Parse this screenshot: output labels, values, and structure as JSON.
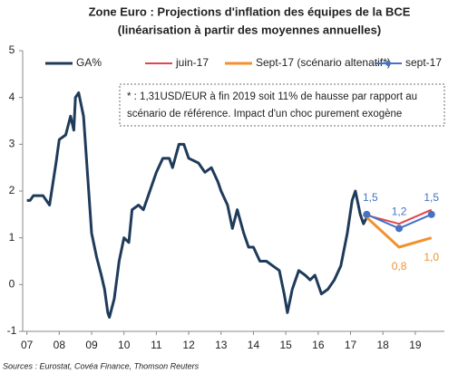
{
  "chart_data": {
    "type": "line",
    "title": "Zone Euro : Projections d'inflation des équipes de la BCE",
    "subtitle": "(linéarisation à partir des moyennes annuelles)",
    "annotation": [
      "* : 1,31USD/EUR à fin 2019 soit  11% de hausse par rapport au",
      "scénario de référence. Impact d'un choc purement exogène"
    ],
    "source": "Sources : Eurostat, Covéa Finance, Thomson Reuters",
    "xlim": [
      2006.87,
      2019.9
    ],
    "xticks": [
      {
        "value": 2007,
        "label": "07"
      },
      {
        "value": 2008,
        "label": "08"
      },
      {
        "value": 2009,
        "label": "09"
      },
      {
        "value": 2010,
        "label": "10"
      },
      {
        "value": 2011,
        "label": "11"
      },
      {
        "value": 2012,
        "label": "12"
      },
      {
        "value": 2013,
        "label": "13"
      },
      {
        "value": 2014,
        "label": "14"
      },
      {
        "value": 2015,
        "label": "15"
      },
      {
        "value": 2016,
        "label": "16"
      },
      {
        "value": 2017,
        "label": "17"
      },
      {
        "value": 2018,
        "label": "18"
      },
      {
        "value": 2019,
        "label": "19"
      }
    ],
    "ylim": [
      -1,
      5
    ],
    "yticks": [
      -1,
      0,
      1,
      2,
      3,
      4,
      5
    ],
    "grid": false,
    "legend": "top",
    "series": [
      {
        "name": "GA%",
        "color": "#1f3b5a",
        "width": 3,
        "x": [
          2007.0,
          2007.1,
          2007.2,
          2007.5,
          2007.7,
          2007.9,
          2008.0,
          2008.2,
          2008.35,
          2008.45,
          2008.5,
          2008.6,
          2008.75,
          2008.9,
          2009.0,
          2009.15,
          2009.3,
          2009.4,
          2009.5,
          2009.55,
          2009.7,
          2009.85,
          2010.0,
          2010.15,
          2010.25,
          2010.45,
          2010.6,
          2010.75,
          2010.9,
          2011.0,
          2011.2,
          2011.4,
          2011.5,
          2011.7,
          2011.85,
          2012.0,
          2012.3,
          2012.5,
          2012.7,
          2012.9,
          2013.0,
          2013.2,
          2013.35,
          2013.5,
          2013.7,
          2013.85,
          2014.0,
          2014.2,
          2014.4,
          2014.6,
          2014.8,
          2014.95,
          2015.05,
          2015.2,
          2015.4,
          2015.6,
          2015.75,
          2015.9,
          2016.1,
          2016.3,
          2016.5,
          2016.7,
          2016.9,
          2017.05,
          2017.15,
          2017.3,
          2017.4,
          2017.55
        ],
        "values": [
          1.8,
          1.8,
          1.9,
          1.9,
          1.7,
          2.6,
          3.1,
          3.2,
          3.6,
          3.3,
          4.0,
          4.1,
          3.6,
          2.1,
          1.1,
          0.6,
          0.2,
          -0.1,
          -0.6,
          -0.7,
          -0.3,
          0.5,
          1.0,
          0.9,
          1.6,
          1.7,
          1.6,
          1.9,
          2.2,
          2.4,
          2.7,
          2.7,
          2.5,
          3.0,
          3.0,
          2.7,
          2.6,
          2.4,
          2.5,
          2.2,
          2.0,
          1.7,
          1.2,
          1.6,
          1.1,
          0.8,
          0.8,
          0.5,
          0.5,
          0.4,
          0.3,
          -0.2,
          -0.6,
          -0.1,
          0.3,
          0.2,
          0.1,
          0.2,
          -0.2,
          -0.1,
          0.1,
          0.4,
          1.1,
          1.8,
          2.0,
          1.5,
          1.3,
          1.5
        ]
      },
      {
        "name": "juin-17",
        "color": "#e0464a",
        "width": 2,
        "x": [
          2017.4,
          2018.5,
          2019.5
        ],
        "values": [
          1.5,
          1.3,
          1.6
        ]
      },
      {
        "name": "Sept-17 (scénario altenatif*)",
        "color": "#f0922e",
        "width": 3,
        "x": [
          2017.4,
          2018.5,
          2019.5
        ],
        "values": [
          1.5,
          0.8,
          1.0
        ],
        "value_labels": [
          null,
          "0,8",
          "1,0"
        ]
      },
      {
        "name": "sept-17",
        "color": "#4472c4",
        "width": 2,
        "markers": true,
        "x": [
          2017.5,
          2018.5,
          2019.5
        ],
        "values": [
          1.5,
          1.2,
          1.5
        ],
        "value_labels": [
          "1,5",
          "1,2",
          "1,5"
        ]
      }
    ]
  }
}
